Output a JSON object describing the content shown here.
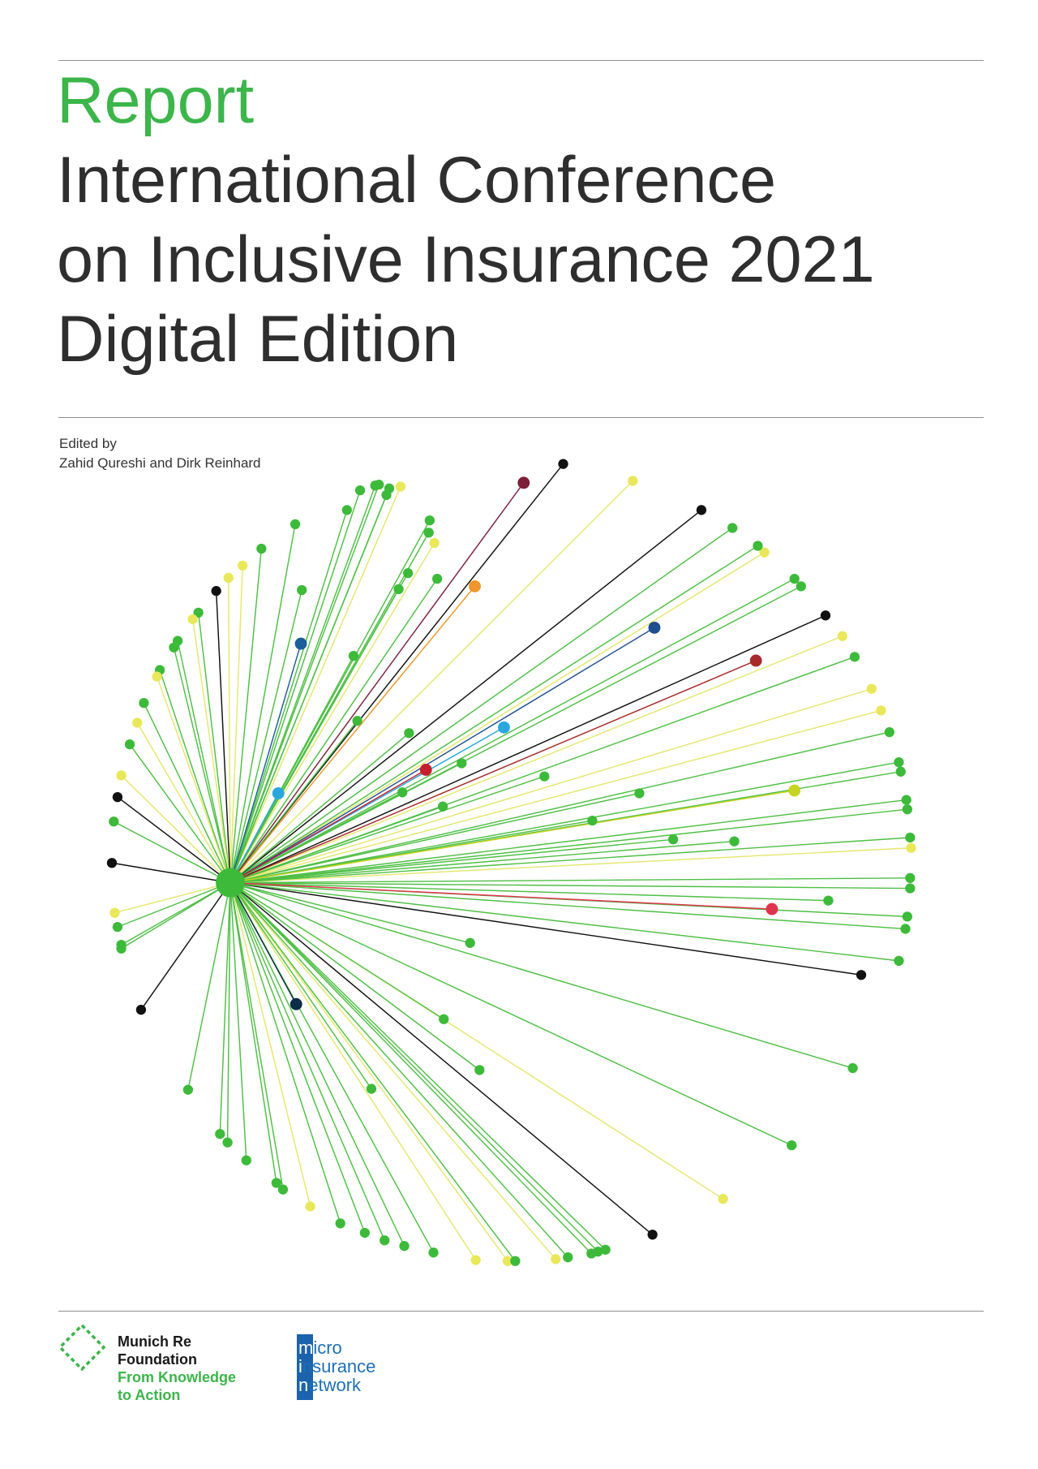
{
  "header": {
    "kicker": "Report",
    "title_lines": [
      "International Conference",
      "on Inclusive Insurance 2021",
      "Digital Edition"
    ]
  },
  "credits": {
    "label": "Edited by",
    "editors": "Zahid Qureshi and Dirk Reinhard"
  },
  "logos": {
    "munich_re_foundation": {
      "name_line1": "Munich Re",
      "name_line2": "Foundation",
      "tagline_line1": "From Knowledge",
      "tagline_line2": "to Action"
    },
    "microinsurance_network": {
      "lines": [
        "micro",
        "insurance",
        "network"
      ]
    }
  },
  "colors": {
    "accent_green": "#3cb54a",
    "title_text": "#2e2e2e",
    "network_blue": "#1b63ad"
  },
  "network_palette": {
    "g": "#3dba3a",
    "y": "#e8e85a",
    "k": "#111111",
    "maroon": "#7b1f3a",
    "orange": "#f0962a",
    "navy": "#1e4f8f",
    "brown": "#a62b2a",
    "lime": "#c5d423",
    "sky": "#2aa7df",
    "red": "#c41f2c",
    "blue": "#1d5d99",
    "ink": "#0d2c47",
    "crimson": "#e0334d"
  }
}
